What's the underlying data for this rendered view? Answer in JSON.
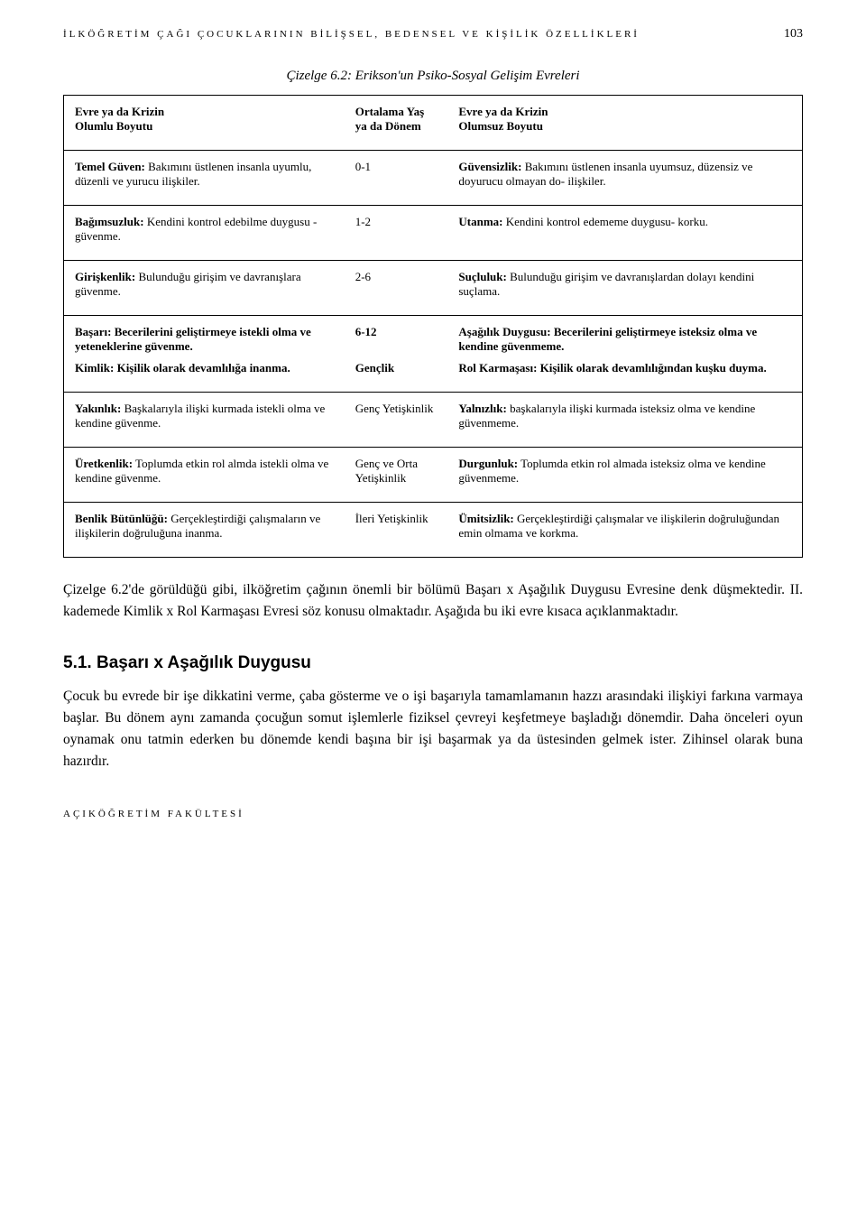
{
  "header": {
    "running_title": "İLKÖĞRETİM ÇAĞI ÇOCUKLARININ BİLİŞSEL, BEDENSEL VE KİŞİLİK ÖZELLİKLERİ",
    "page_number": "103"
  },
  "table": {
    "caption": "Çizelge 6.2: Erikson'un Psiko-Sosyal Gelişim Evreleri",
    "header": {
      "col1_line1": "Evre ya da Krizin",
      "col1_line2": "Olumlu Boyutu",
      "col2_line1": "Ortalama Yaş",
      "col2_line2": "ya da Dönem",
      "col3_line1": "Evre ya da Krizin",
      "col3_line2": "Olumsuz Boyutu"
    },
    "rows": [
      {
        "left_bold": "Temel Güven:",
        "left_rest": " Bakımını üstlenen insanla uyumlu, düzenli ve yurucu ilişkiler.",
        "mid": "0-1",
        "right_bold": "Güvensizlik:",
        "right_rest": " Bakımını üstlenen insanla uyumsuz, düzensiz ve doyurucu olmayan do- ilişkiler."
      },
      {
        "left_bold": "Bağımsuzluk:",
        "left_rest": " Kendini kontrol edebilme duygusu -güvenme.",
        "mid": "1-2",
        "right_bold": "Utanma:",
        "right_rest": " Kendini kontrol edememe duygusu- korku."
      },
      {
        "left_bold": "Girişkenlik:",
        "left_rest": " Bulunduğu girişim ve davranışlara güvenme.",
        "mid": "2-6",
        "right_bold": "Suçluluk:",
        "right_rest": " Bulunduğu girişim ve davranışlardan dolayı kendini suçlama."
      }
    ],
    "group1": {
      "r1": {
        "left_bold": "Başarı: Becerilerini geliştirmeye istekli olma ve yeteneklerine güvenme.",
        "left_rest": "",
        "mid": "6-12",
        "right_bold": "Aşağılık Duygusu: Becerilerini geliştirmeye isteksiz olma ve kendine güvenmeme.",
        "right_rest": ""
      },
      "r2": {
        "left_bold": "Kimlik: Kişilik olarak devamlılığa inanma.",
        "left_rest": "",
        "mid": "Gençlik",
        "right_bold": "Rol Karmaşası: Kişilik olarak devamlılığından kuşku duyma.",
        "right_rest": ""
      }
    },
    "rows2": [
      {
        "left_bold": "Yakınlık:",
        "left_rest": " Başkalarıyla ilişki kurmada istekli olma ve kendine güvenme.",
        "mid": "Genç Yetişkinlik",
        "right_bold": "Yalnızlık:",
        "right_rest": " başkalarıyla ilişki kurmada isteksiz olma ve kendine güvenmeme."
      },
      {
        "left_bold": "Üretkenlik:",
        "left_rest": " Toplumda etkin rol almda istekli olma ve kendine güvenme.",
        "mid": "Genç ve Orta Yetişkinlik",
        "right_bold": "Durgunluk:",
        "right_rest": " Toplumda etkin rol almada isteksiz olma ve kendine güvenmeme."
      },
      {
        "left_bold": "Benlik Bütünlüğü:",
        "left_rest": " Gerçekleştirdiği çalışmaların ve ilişkilerin doğruluğuna inanma.",
        "mid": "İleri Yetişkinlik",
        "right_bold": "Ümitsizlik:",
        "right_rest": " Gerçekleştirdiği çalışmalar ve ilişkilerin doğruluğundan emin olmama ve korkma."
      }
    ]
  },
  "paragraphs": {
    "p1": "Çizelge 6.2'de görüldüğü gibi, ilköğretim çağının önemli bir bölümü Başarı x Aşağılık Duygusu Evresine denk düşmektedir. II. kademede Kimlik x Rol Karmaşası Evresi söz konusu olmaktadır. Aşağıda bu iki evre kısaca açıklanmaktadır."
  },
  "section": {
    "heading": "5.1. Başarı x Aşağılık Duygusu",
    "body": "Çocuk bu evrede bir işe dikkatini verme, çaba gösterme ve o işi başarıyla tamamlamanın hazzı arasındaki ilişkiyi farkına varmaya başlar. Bu dönem aynı zamanda çocuğun somut işlemlerle fiziksel çevreyi keşfetmeye başladığı dönemdir. Daha önceleri oyun oynamak onu tatmin ederken bu dönemde kendi başına bir işi başarmak ya da üstesinden gelmek ister. Zihinsel olarak buna hazırdır."
  },
  "footer": {
    "text": "AÇIKÖĞRETİM FAKÜLTESİ"
  },
  "colors": {
    "background": "#ffffff",
    "text": "#000000",
    "border": "#000000"
  },
  "typography": {
    "body_font": "Times New Roman",
    "heading_font": "Arial",
    "body_size_pt": 12,
    "table_size_pt": 10,
    "caption_size_pt": 11
  }
}
